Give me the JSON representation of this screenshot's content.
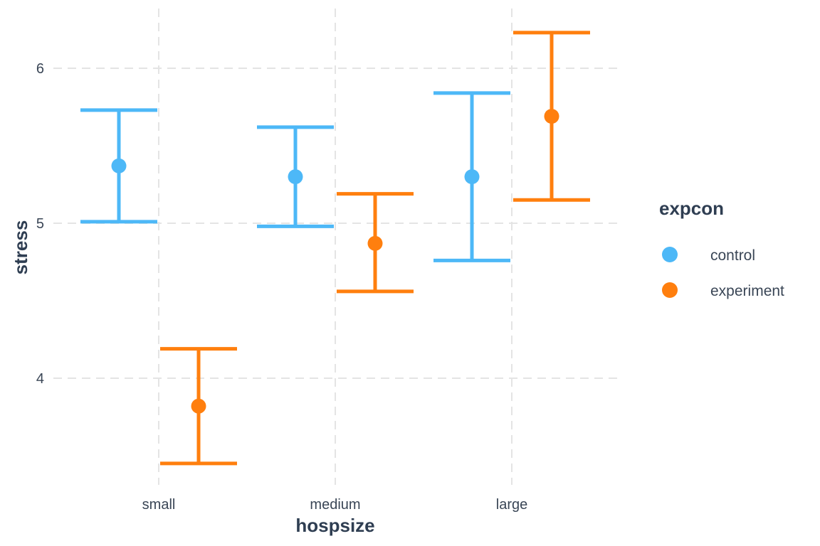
{
  "chart_data": {
    "type": "errorbar",
    "xlabel": "hospsize",
    "ylabel": "stress",
    "categories": [
      "small",
      "medium",
      "large"
    ],
    "y_ticks": [
      "4",
      "5",
      "6"
    ],
    "ylim": [
      3.35,
      6.4
    ],
    "grid": true,
    "legend_title": "expcon",
    "legend_position": "right",
    "series": [
      {
        "name": "control",
        "color": "#4db8f7",
        "points": [
          {
            "category": "small",
            "mean": 5.37,
            "lower": 5.01,
            "upper": 5.73
          },
          {
            "category": "medium",
            "mean": 5.3,
            "lower": 4.98,
            "upper": 5.62
          },
          {
            "category": "large",
            "mean": 5.3,
            "lower": 4.76,
            "upper": 5.84
          }
        ]
      },
      {
        "name": "experiment",
        "color": "#ff7f0e",
        "points": [
          {
            "category": "small",
            "mean": 3.82,
            "lower": 3.45,
            "upper": 4.19
          },
          {
            "category": "medium",
            "mean": 4.87,
            "lower": 4.56,
            "upper": 5.19
          },
          {
            "category": "large",
            "mean": 5.69,
            "lower": 5.15,
            "upper": 6.23
          }
        ]
      }
    ]
  }
}
